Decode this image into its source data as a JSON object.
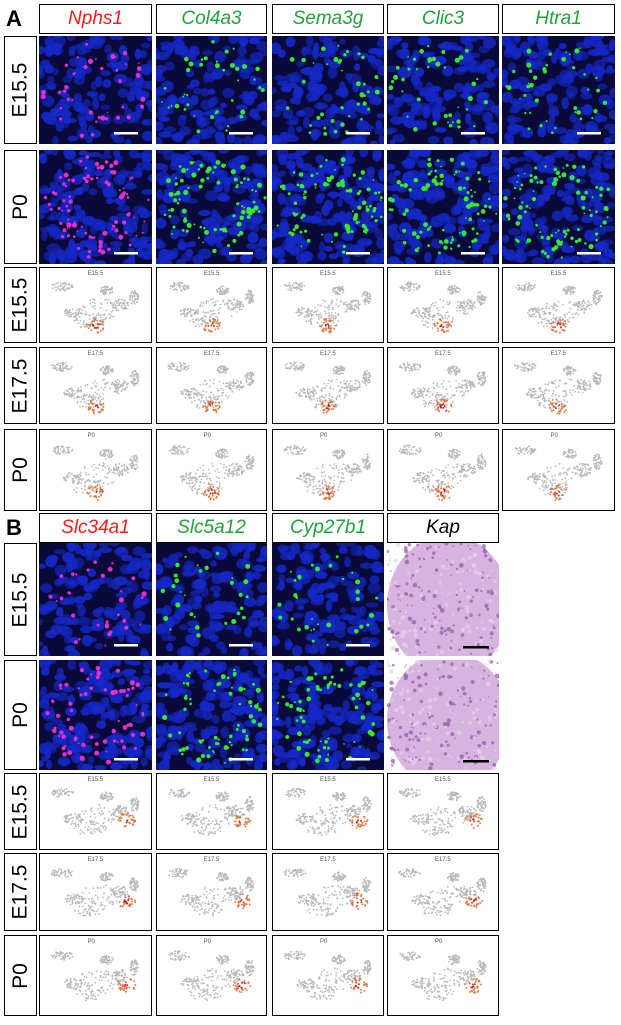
{
  "panels": [
    {
      "letter": "A",
      "genes": [
        {
          "name": "Nphs1",
          "color": "#ff1a1a"
        },
        {
          "name": "Col4a3",
          "color": "#1fa33a"
        },
        {
          "name": "Sema3g",
          "color": "#1fa33a"
        },
        {
          "name": "Clic3",
          "color": "#1fa33a"
        },
        {
          "name": "Htra1",
          "color": "#1fa33a"
        }
      ],
      "image_rows": [
        "E15.5",
        "P0"
      ],
      "umap_rows": [
        "E15.5",
        "E17.5",
        "P0"
      ]
    },
    {
      "letter": "B",
      "genes": [
        {
          "name": "Slc34a1",
          "color": "#ff1a1a"
        },
        {
          "name": "Slc5a12",
          "color": "#1fa33a"
        },
        {
          "name": "Cyp27b1",
          "color": "#1fa33a"
        },
        {
          "name": "Kap",
          "color": "#000000"
        }
      ],
      "image_rows": [
        "E15.5",
        "P0"
      ],
      "umap_rows": [
        "E15.5",
        "E17.5",
        "P0"
      ]
    }
  ],
  "colors": {
    "nuclei": "#1528c8",
    "fluor_green": "#35e835",
    "fluor_magenta": "#e030d0",
    "he_purple": "#c99ad6",
    "umap_grey": "#b8b8b8",
    "umap_expr": "#e0662a",
    "umap_expr_high": "#b01010"
  }
}
